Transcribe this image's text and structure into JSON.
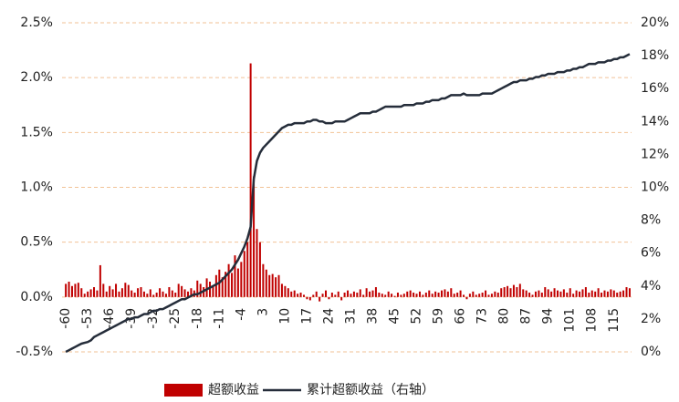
{
  "chart_data": {
    "type": "combo",
    "x": [
      -60,
      -59,
      -58,
      -57,
      -56,
      -55,
      -54,
      -53,
      -52,
      -51,
      -50,
      -49,
      -48,
      -47,
      -46,
      -45,
      -44,
      -43,
      -42,
      -41,
      -40,
      -39,
      -38,
      -37,
      -36,
      -35,
      -34,
      -33,
      -32,
      -31,
      -30,
      -29,
      -28,
      -27,
      -26,
      -25,
      -24,
      -23,
      -22,
      -21,
      -20,
      -19,
      -18,
      -17,
      -16,
      -15,
      -14,
      -13,
      -12,
      -11,
      -10,
      -9,
      -8,
      -7,
      -6,
      -5,
      -4,
      -3,
      -2,
      -1,
      0,
      1,
      2,
      3,
      4,
      5,
      6,
      7,
      8,
      9,
      10,
      11,
      12,
      13,
      14,
      15,
      16,
      17,
      18,
      19,
      20,
      21,
      22,
      23,
      24,
      25,
      26,
      27,
      28,
      29,
      30,
      31,
      32,
      33,
      34,
      35,
      36,
      37,
      38,
      39,
      40,
      41,
      42,
      43,
      44,
      45,
      46,
      47,
      48,
      49,
      50,
      51,
      52,
      53,
      54,
      55,
      56,
      57,
      58,
      59,
      60,
      61,
      62,
      63,
      64,
      65,
      66,
      67,
      68,
      69,
      70,
      71,
      72,
      73,
      74,
      75,
      76,
      77,
      78,
      79,
      80,
      81,
      82,
      83,
      84,
      85,
      86,
      87,
      88,
      89,
      90,
      91,
      92,
      93,
      94,
      95,
      96,
      97,
      98,
      99,
      100,
      101,
      102,
      103,
      104,
      105,
      106,
      107,
      108,
      109,
      110,
      111,
      112,
      113,
      114,
      115,
      116,
      117,
      118,
      119,
      120
    ],
    "series": [
      {
        "name": "超额收益",
        "type": "bar",
        "color": "#c00000",
        "values": [
          0.12,
          0.14,
          0.1,
          0.12,
          0.13,
          0.08,
          0.03,
          0.05,
          0.07,
          0.09,
          0.06,
          0.29,
          0.12,
          0.05,
          0.1,
          0.07,
          0.12,
          0.05,
          0.08,
          0.13,
          0.11,
          0.06,
          0.04,
          0.08,
          0.09,
          0.05,
          0.03,
          0.07,
          0.02,
          0.04,
          0.08,
          0.05,
          0.03,
          0.09,
          0.06,
          0.04,
          0.12,
          0.1,
          0.07,
          0.05,
          0.08,
          0.06,
          0.15,
          0.12,
          0.09,
          0.17,
          0.14,
          0.1,
          0.2,
          0.25,
          0.18,
          0.23,
          0.3,
          0.22,
          0.38,
          0.26,
          0.32,
          0.42,
          0.5,
          2.13,
          1.1,
          0.62,
          0.5,
          0.3,
          0.25,
          0.2,
          0.21,
          0.18,
          0.2,
          0.12,
          0.1,
          0.08,
          0.05,
          0.06,
          0.03,
          0.04,
          0.02,
          -0.02,
          -0.03,
          0.02,
          0.05,
          -0.04,
          0.03,
          0.06,
          -0.02,
          0.04,
          0.02,
          0.05,
          -0.03,
          0.04,
          0.06,
          0.03,
          0.05,
          0.04,
          0.07,
          0.02,
          0.08,
          0.05,
          0.06,
          0.09,
          0.04,
          0.03,
          0.02,
          0.05,
          0.03,
          0.01,
          0.04,
          0.02,
          0.03,
          0.05,
          0.06,
          0.04,
          0.03,
          0.05,
          0.02,
          0.04,
          0.06,
          0.03,
          0.05,
          0.04,
          0.06,
          0.07,
          0.05,
          0.08,
          0.03,
          0.04,
          0.06,
          0.02,
          -0.02,
          0.03,
          0.05,
          0.02,
          0.03,
          0.04,
          0.06,
          0.02,
          0.03,
          0.05,
          0.04,
          0.08,
          0.09,
          0.1,
          0.08,
          0.11,
          0.09,
          0.12,
          0.07,
          0.06,
          0.04,
          0.02,
          0.05,
          0.06,
          0.04,
          0.09,
          0.07,
          0.05,
          0.08,
          0.06,
          0.05,
          0.07,
          0.04,
          0.08,
          0.03,
          0.06,
          0.05,
          0.07,
          0.09,
          0.04,
          0.06,
          0.05,
          0.08,
          0.04,
          0.06,
          0.05,
          0.07,
          0.06,
          0.04,
          0.05,
          0.06,
          0.09,
          0.08
        ]
      },
      {
        "name": "累计超额收益（右轴）",
        "type": "line",
        "axis": "y2",
        "color": "#252d3a",
        "values": [
          0,
          0.1,
          0.2,
          0.3,
          0.4,
          0.5,
          0.55,
          0.6,
          0.7,
          0.9,
          1.0,
          1.1,
          1.2,
          1.3,
          1.4,
          1.5,
          1.6,
          1.7,
          1.8,
          1.9,
          2.0,
          2.0,
          2.1,
          2.1,
          2.2,
          2.3,
          2.3,
          2.4,
          2.5,
          2.5,
          2.6,
          2.6,
          2.7,
          2.8,
          2.9,
          3.0,
          3.1,
          3.2,
          3.2,
          3.3,
          3.4,
          3.5,
          3.5,
          3.6,
          3.7,
          3.8,
          3.9,
          4.0,
          4.1,
          4.2,
          4.4,
          4.6,
          4.8,
          5.0,
          5.3,
          5.6,
          6.0,
          6.4,
          6.9,
          7.6,
          10.5,
          11.6,
          12.1,
          12.4,
          12.6,
          12.8,
          13.0,
          13.2,
          13.4,
          13.6,
          13.7,
          13.8,
          13.8,
          13.9,
          13.9,
          13.9,
          13.9,
          14.0,
          14.0,
          14.1,
          14.1,
          14.0,
          14.0,
          13.9,
          13.9,
          13.9,
          14.0,
          14.0,
          14.0,
          14.0,
          14.1,
          14.2,
          14.3,
          14.4,
          14.5,
          14.5,
          14.5,
          14.5,
          14.6,
          14.6,
          14.7,
          14.8,
          14.9,
          14.9,
          14.9,
          14.9,
          14.9,
          14.9,
          15.0,
          15.0,
          15.0,
          15.0,
          15.1,
          15.1,
          15.1,
          15.2,
          15.2,
          15.3,
          15.3,
          15.3,
          15.4,
          15.4,
          15.5,
          15.6,
          15.6,
          15.6,
          15.6,
          15.7,
          15.6,
          15.6,
          15.6,
          15.6,
          15.6,
          15.7,
          15.7,
          15.7,
          15.7,
          15.8,
          15.9,
          16.0,
          16.1,
          16.2,
          16.3,
          16.4,
          16.4,
          16.5,
          16.5,
          16.5,
          16.6,
          16.6,
          16.7,
          16.7,
          16.8,
          16.8,
          16.9,
          16.9,
          16.9,
          17.0,
          17.0,
          17.0,
          17.1,
          17.1,
          17.2,
          17.2,
          17.3,
          17.3,
          17.4,
          17.5,
          17.5,
          17.5,
          17.6,
          17.6,
          17.6,
          17.7,
          17.7,
          17.8,
          17.8,
          17.9,
          17.9,
          18.0,
          18.1
        ]
      }
    ],
    "xlim": [
      -61.2,
      120.6
    ],
    "xticks": [
      -60,
      -53,
      -46,
      -39,
      -32,
      -25,
      -18,
      -11,
      -4,
      3,
      10,
      17,
      24,
      31,
      38,
      45,
      52,
      59,
      66,
      73,
      80,
      87,
      94,
      101,
      108,
      115
    ],
    "ylim": [
      -0.5,
      2.5
    ],
    "yticks": [
      {
        "value": -0.5,
        "label": "-0.5%"
      },
      {
        "value": 0,
        "label": "0.0%"
      },
      {
        "value": 0.5,
        "label": "0.5%"
      },
      {
        "value": 1.0,
        "label": "1.0%"
      },
      {
        "value": 1.5,
        "label": "1.5%"
      },
      {
        "value": 2.0,
        "label": "2.0%"
      },
      {
        "value": 2.5,
        "label": "2.5%"
      }
    ],
    "y2lim": [
      0,
      20
    ],
    "y2ticks": [
      {
        "value": 0,
        "label": "0%"
      },
      {
        "value": 2,
        "label": "2%"
      },
      {
        "value": 4,
        "label": "4%"
      },
      {
        "value": 6,
        "label": "6%"
      },
      {
        "value": 8,
        "label": "8%"
      },
      {
        "value": 10,
        "label": "10%"
      },
      {
        "value": 12,
        "label": "12%"
      },
      {
        "value": 14,
        "label": "14%"
      },
      {
        "value": 16,
        "label": "16%"
      },
      {
        "value": 18,
        "label": "18%"
      },
      {
        "value": 20,
        "label": "20%"
      }
    ],
    "grid": true,
    "grid_color": "#f2c296",
    "legend": "bottom"
  }
}
